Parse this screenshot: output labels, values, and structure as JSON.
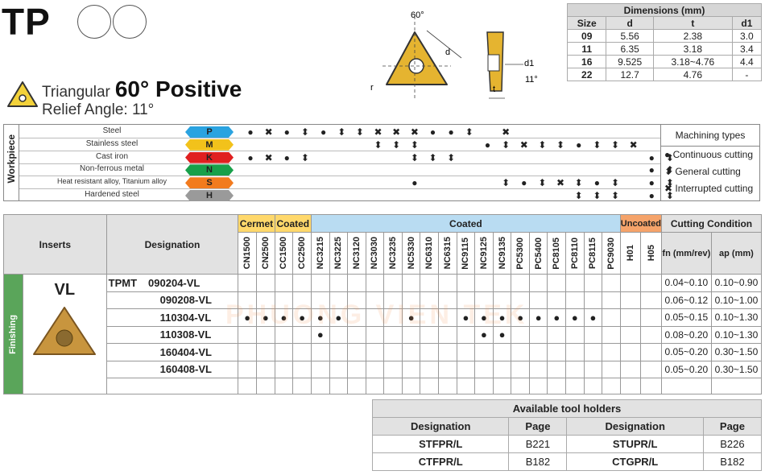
{
  "header": {
    "code": "TP",
    "shape": "Triangular",
    "angle": "60° Positive",
    "relief": "Relief Angle: 11°"
  },
  "diagram": {
    "angle": "60°",
    "d": "d",
    "t": "t",
    "d1": "d1",
    "r": "r",
    "relief": "11°"
  },
  "dimensions": {
    "title": "Dimensions (mm)",
    "headers": [
      "Size",
      "d",
      "t",
      "d1"
    ],
    "rows": [
      [
        "09",
        "5.56",
        "2.38",
        "3.0"
      ],
      [
        "11",
        "6.35",
        "3.18",
        "3.4"
      ],
      [
        "16",
        "9.525",
        "3.18~4.76",
        "4.4"
      ],
      [
        "22",
        "12.7",
        "4.76",
        "-"
      ]
    ]
  },
  "workpiece": {
    "label": "Workpiece",
    "materials": [
      {
        "name": "Steel",
        "code": "P",
        "color": "#2aa3e0"
      },
      {
        "name": "Stainless steel",
        "code": "M",
        "color": "#f2c21b"
      },
      {
        "name": "Cast iron",
        "code": "K",
        "color": "#e02020"
      },
      {
        "name": "Non-ferrous metal",
        "code": "N",
        "color": "#18a04a"
      },
      {
        "name": "Heat resistant alloy, Titanium alloy",
        "code": "S",
        "color": "#f27b1e"
      },
      {
        "name": "Hardened steel",
        "code": "H",
        "color": "#9a9a9a"
      }
    ],
    "matrix": [
      [
        "●",
        "✖",
        "●",
        "⬍",
        "●",
        "⬍",
        "⬍",
        "✖",
        "✖",
        "✖",
        "●",
        "●",
        "⬍",
        "",
        "✖",
        "",
        "",
        "",
        "",
        "",
        "",
        "",
        ""
      ],
      [
        "",
        "",
        "",
        "",
        "",
        "",
        "",
        "⬍",
        "⬍",
        "⬍",
        "",
        "",
        "",
        "●",
        "⬍",
        "✖",
        "⬍",
        "⬍",
        "●",
        "⬍",
        "⬍",
        "✖",
        "",
        ""
      ],
      [
        "●",
        "✖",
        "●",
        "⬍",
        "",
        "",
        "",
        "",
        "",
        "⬍",
        "⬍",
        "⬍",
        "",
        "",
        "",
        "",
        "",
        "",
        "",
        "",
        "",
        "",
        "●",
        "⬍"
      ],
      [
        "",
        "",
        "",
        "",
        "",
        "",
        "",
        "",
        "",
        "",
        "",
        "",
        "",
        "",
        "",
        "",
        "",
        "",
        "",
        "",
        "",
        "",
        "●",
        "⬍"
      ],
      [
        "",
        "",
        "",
        "",
        "",
        "",
        "",
        "",
        "",
        "●",
        "",
        "",
        "",
        "",
        "⬍",
        "●",
        "⬍",
        "✖",
        "⬍",
        "●",
        "⬍",
        "",
        "●",
        "⬍"
      ],
      [
        "",
        "",
        "",
        "",
        "",
        "",
        "",
        "",
        "",
        "",
        "",
        "",
        "",
        "",
        "",
        "",
        "",
        "",
        "⬍",
        "⬍",
        "⬍",
        "",
        "●",
        "⬍"
      ]
    ]
  },
  "machining_types": {
    "title": "Machining types",
    "continuous": "Continuous cutting",
    "general": "General cutting",
    "interrupted": "Interrupted cutting"
  },
  "main": {
    "inserts_header": "Inserts",
    "designation_header": "Designation",
    "group_cermet": "Cermet",
    "group_coated1": "Coated",
    "group_coated2": "Coated",
    "group_uncoated": "Uncoated",
    "cutting_condition": "Cutting Condition",
    "fn_header": "fn (mm/rev)",
    "ap_header": "ap (mm)",
    "grades": [
      "CN1500",
      "CN2500",
      "CC1500",
      "CC2500",
      "NC3215",
      "NC3225",
      "NC3120",
      "NC3030",
      "NC3235",
      "NC5330",
      "NC6310",
      "NC6315",
      "NC9115",
      "NC9125",
      "NC9135",
      "PC5300",
      "PC5400",
      "PC8105",
      "PC8110",
      "PC8115",
      "PC9030",
      "H01",
      "H05"
    ],
    "section": "Finishing",
    "chipbreaker": "VL",
    "series": "TPMT",
    "rows": [
      {
        "designation": "090204-VL",
        "marks": [],
        "fn": "0.04~0.10",
        "ap": "0.10~0.90"
      },
      {
        "designation": "090208-VL",
        "marks": [],
        "fn": "0.06~0.12",
        "ap": "0.10~1.00"
      },
      {
        "designation": "110304-VL",
        "marks": [
          0,
          1,
          2,
          3,
          4,
          5,
          9,
          12,
          13,
          14,
          15,
          16,
          17,
          18,
          19
        ],
        "fn": "0.05~0.15",
        "ap": "0.10~1.30"
      },
      {
        "designation": "110308-VL",
        "marks": [
          4,
          13,
          14
        ],
        "fn": "0.08~0.20",
        "ap": "0.10~1.30"
      },
      {
        "designation": "160404-VL",
        "marks": [],
        "fn": "0.05~0.20",
        "ap": "0.30~1.50"
      },
      {
        "designation": "160408-VL",
        "marks": [],
        "fn": "0.05~0.20",
        "ap": "0.30~1.50"
      }
    ]
  },
  "holders": {
    "title": "Available tool holders",
    "headers": [
      "Designation",
      "Page",
      "Designation",
      "Page"
    ],
    "rows": [
      [
        "STFPR/L",
        "B221",
        "STUPR/L",
        "B226"
      ],
      [
        "CTFPR/L",
        "B182",
        "CTGPR/L",
        "B182"
      ]
    ]
  },
  "watermark": "PHUONG VIEN TEK"
}
